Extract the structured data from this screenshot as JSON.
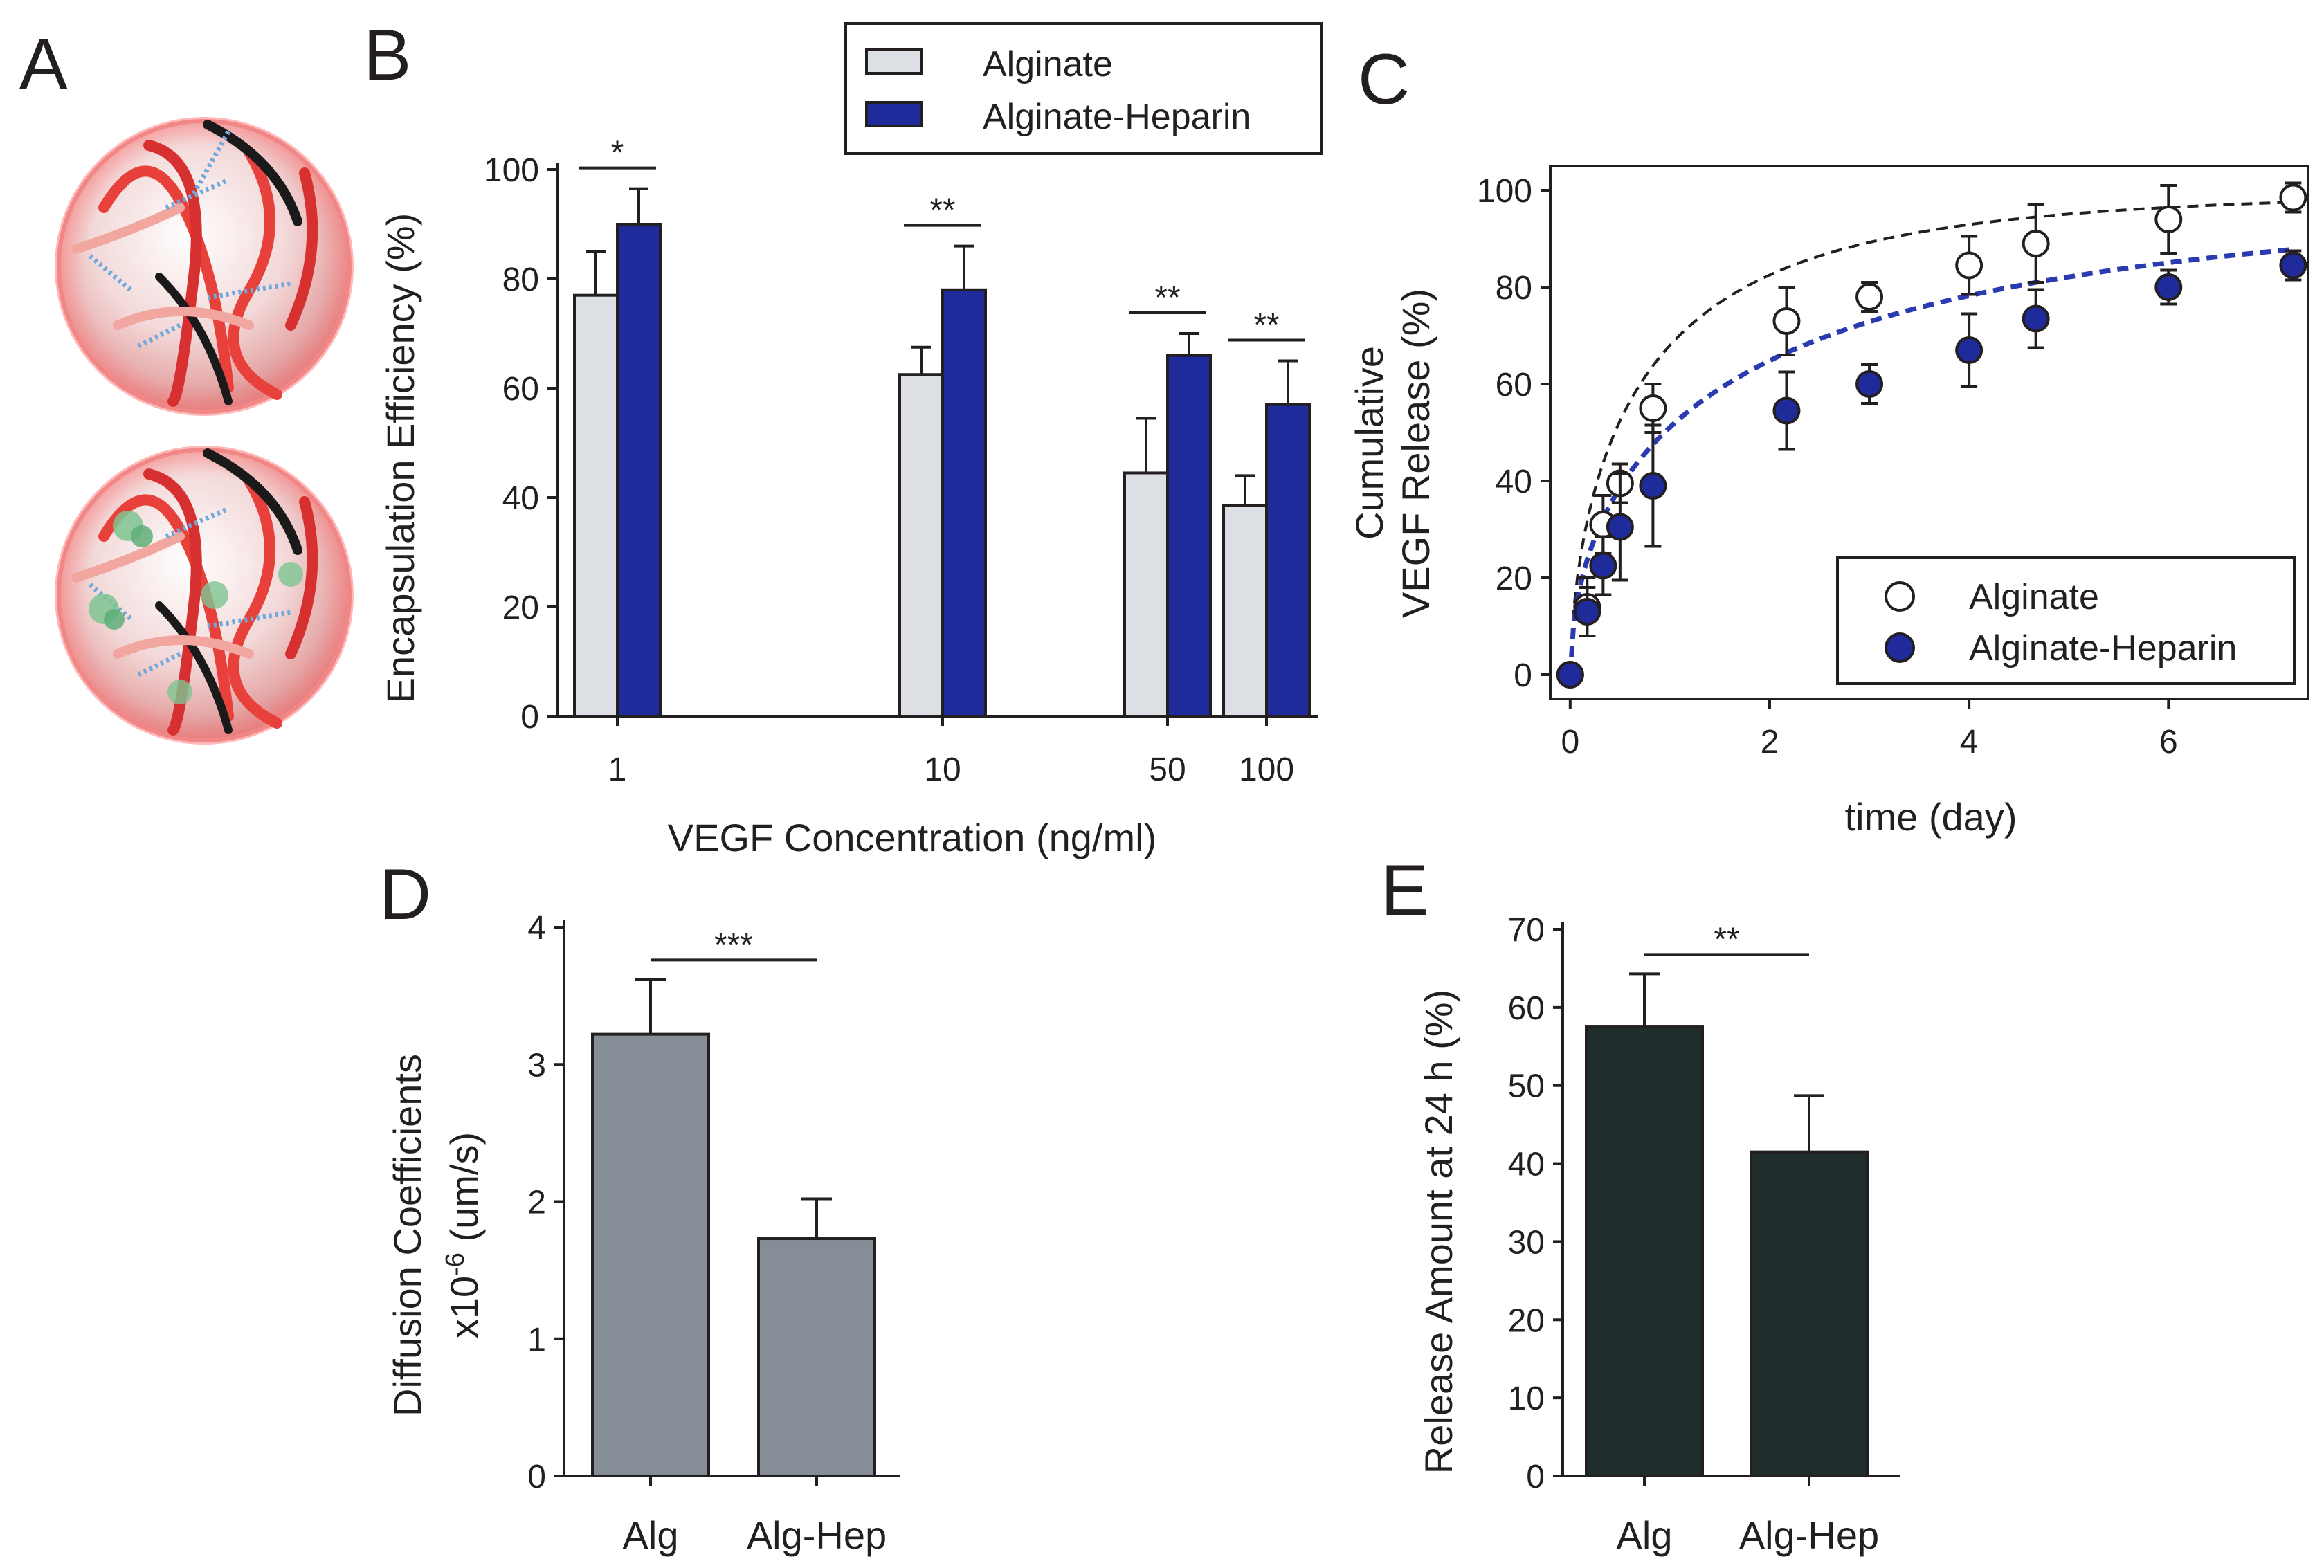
{
  "panels": {
    "A": {
      "letter": "A"
    },
    "B": {
      "letter": "B"
    },
    "C": {
      "letter": "C"
    },
    "D": {
      "letter": "D"
    },
    "E": {
      "letter": "E"
    }
  },
  "colors": {
    "alginate": "#dcdfe3",
    "heparin": "#1f2b9a",
    "diffusion": "#858e96",
    "release": "#1f2d2d",
    "fit_alginate": "#231f20",
    "fit_heparin": "#2a3bb0"
  },
  "chart_data": [
    {
      "panel": "B",
      "type": "bar",
      "title": "",
      "xlabel": "VEGF Concentration (ng/ml)",
      "ylabel": "Encapsulation Efficiency (%)",
      "ylim": [
        0,
        100
      ],
      "yticks": [
        "0",
        "20",
        "40",
        "60",
        "80",
        "100"
      ],
      "categories": [
        "1",
        "10",
        "50",
        "100"
      ],
      "series": [
        {
          "name": "Alginate",
          "values": [
            77,
            62.5,
            44.5,
            38.5
          ],
          "errors": [
            8,
            5,
            10,
            5.5
          ]
        },
        {
          "name": "Alginate-Heparin",
          "values": [
            90,
            78,
            66,
            57
          ],
          "errors": [
            6.5,
            8,
            4,
            8
          ]
        }
      ],
      "significance": [
        "*",
        "**",
        "**",
        "**"
      ],
      "legend": [
        "Alginate",
        "Alginate-Heparin"
      ]
    },
    {
      "panel": "C",
      "type": "scatter",
      "title": "",
      "xlabel": "time (day)",
      "ylabel_line1": "Cumulative",
      "ylabel_line2": "VEGF Release (%)",
      "xlim": [
        -0.2,
        7.4
      ],
      "ylim": [
        -5,
        105
      ],
      "xticks": [
        "0",
        "2",
        "4",
        "6"
      ],
      "yticks": [
        "0",
        "20",
        "40",
        "60",
        "80",
        "100"
      ],
      "series": [
        {
          "name": "Alginate",
          "x": [
            0,
            0.17,
            0.33,
            0.5,
            0.83,
            2.17,
            3,
            4,
            4.67,
            6,
            7.25
          ],
          "y": [
            0,
            14,
            31,
            39.5,
            55,
            73,
            78,
            84.5,
            89,
            94,
            98.5
          ],
          "errors": [
            0,
            6,
            6,
            4,
            5,
            7,
            3,
            6,
            8,
            7,
            3
          ]
        },
        {
          "name": "Alginate-Heparin",
          "x": [
            0,
            0.17,
            0.33,
            0.5,
            0.83,
            2.17,
            3,
            4,
            4.67,
            6,
            7.25
          ],
          "y": [
            0,
            13,
            22.5,
            30.5,
            39,
            54.5,
            60,
            67,
            73.5,
            80,
            84.5
          ],
          "errors": [
            0,
            5,
            6,
            11,
            12.5,
            8,
            4,
            7.5,
            6,
            3.5,
            3
          ]
        }
      ],
      "legend": [
        "Alginate",
        "Alginate-Heparin"
      ]
    },
    {
      "panel": "D",
      "type": "bar",
      "title": "",
      "ylabel_line1": "Diffusion Coefficients",
      "ylabel_prefix": "x10",
      "ylabel_exponent": "-6",
      "ylabel_unit": " (um/s)",
      "ylim": [
        0,
        4
      ],
      "yticks": [
        "0",
        "1",
        "2",
        "3",
        "4"
      ],
      "categories": [
        "Alg",
        "Alg-Hep"
      ],
      "values": [
        3.22,
        1.73
      ],
      "errors": [
        0.4,
        0.29
      ],
      "significance": "***"
    },
    {
      "panel": "E",
      "type": "bar",
      "title": "",
      "ylabel": "Release Amount at 24 h (%)",
      "ylim": [
        0,
        70
      ],
      "yticks": [
        "0",
        "10",
        "20",
        "30",
        "40",
        "50",
        "60",
        "70"
      ],
      "categories": [
        "Alg",
        "Alg-Hep"
      ],
      "values": [
        57.5,
        41.5
      ],
      "errors": [
        6.8,
        7.2
      ],
      "significance": "**"
    }
  ]
}
